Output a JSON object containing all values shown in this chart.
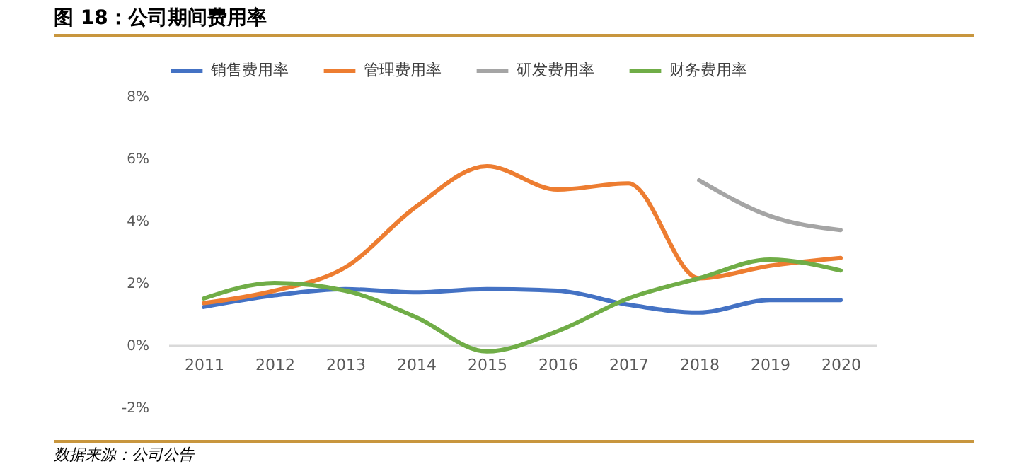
{
  "chart_data": {
    "type": "line",
    "title": "图 18：公司期间费用率",
    "categories": [
      "2011",
      "2012",
      "2013",
      "2014",
      "2015",
      "2016",
      "2017",
      "2018",
      "2019",
      "2020"
    ],
    "series": [
      {
        "name": "销售费用率",
        "color": "#4472c4",
        "values": [
          1.23,
          1.6,
          1.8,
          1.7,
          1.8,
          1.75,
          1.3,
          1.05,
          1.45,
          1.45
        ]
      },
      {
        "name": "管理费用率",
        "color": "#ed7d31",
        "values": [
          1.35,
          1.75,
          2.5,
          4.45,
          5.75,
          5.0,
          5.2,
          2.15,
          2.55,
          2.8
        ]
      },
      {
        "name": "研发费用率",
        "color": "#a5a5a5",
        "values": [
          null,
          null,
          null,
          null,
          null,
          null,
          null,
          5.3,
          4.15,
          3.7
        ]
      },
      {
        "name": "财务费用率",
        "color": "#70ad47",
        "values": [
          1.5,
          2.0,
          1.75,
          0.9,
          -0.2,
          0.45,
          1.5,
          2.15,
          2.75,
          2.4
        ]
      }
    ],
    "ylim": [
      -2,
      8
    ],
    "yticks": [
      {
        "value": -2,
        "label": "-2%"
      },
      {
        "value": 0,
        "label": "0%"
      },
      {
        "value": 2,
        "label": "2%"
      },
      {
        "value": 4,
        "label": "4%"
      },
      {
        "value": 6,
        "label": "6%"
      },
      {
        "value": 8,
        "label": "8%"
      }
    ],
    "grid": false,
    "legend": "top",
    "marker": "none",
    "line_style": "solid",
    "annotations": [
      "数据来源：公司公告"
    ]
  }
}
